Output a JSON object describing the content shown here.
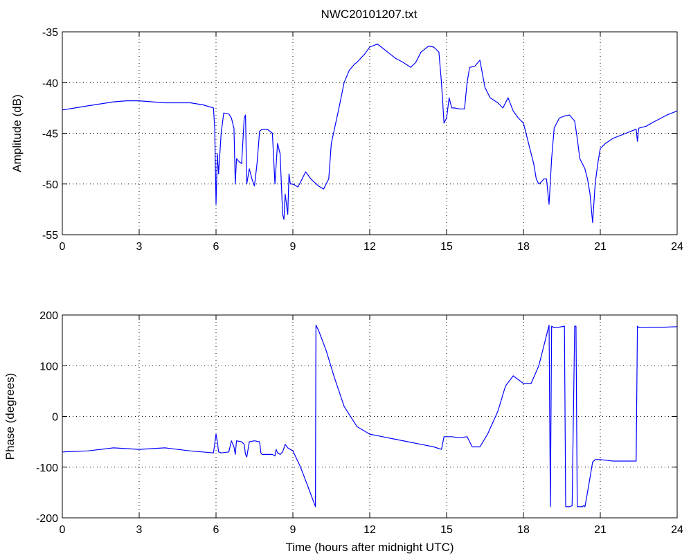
{
  "figure": {
    "title": "NWC20101207.txt",
    "line_color": "#0000ff",
    "background": "#ffffff"
  },
  "chart_data": [
    {
      "type": "line",
      "title": "NWC20101207.txt",
      "xlabel": "",
      "ylabel": "Amplitude (dB)",
      "xlim": [
        0,
        24
      ],
      "ylim": [
        -55,
        -35
      ],
      "xticks": [
        0,
        3,
        6,
        9,
        12,
        15,
        18,
        21,
        24
      ],
      "yticks": [
        -55,
        -50,
        -45,
        -40,
        -35
      ],
      "grid": true,
      "series": [
        {
          "color": "#0000ff",
          "x": [
            0,
            0.5,
            1,
            1.5,
            2,
            2.5,
            3,
            3.5,
            4,
            4.5,
            5,
            5.5,
            5.9,
            5.95,
            6.0,
            6.05,
            6.1,
            6.2,
            6.3,
            6.5,
            6.6,
            6.7,
            6.75,
            6.8,
            6.9,
            7.0,
            7.1,
            7.15,
            7.2,
            7.3,
            7.4,
            7.5,
            7.6,
            7.7,
            7.8,
            8.0,
            8.2,
            8.3,
            8.4,
            8.5,
            8.55,
            8.6,
            8.65,
            8.7,
            8.8,
            8.85,
            8.9,
            9.0,
            9.2,
            9.5,
            9.7,
            10.0,
            10.2,
            10.4,
            10.5,
            10.8,
            11.0,
            11.2,
            11.4,
            11.5,
            11.8,
            12.0,
            12.3,
            12.5,
            12.8,
            13.0,
            13.3,
            13.6,
            13.8,
            14.0,
            14.3,
            14.5,
            14.7,
            14.8,
            14.9,
            15.0,
            15.1,
            15.2,
            15.3,
            15.5,
            15.7,
            15.8,
            15.9,
            16.1,
            16.3,
            16.5,
            16.7,
            17.0,
            17.2,
            17.4,
            17.6,
            17.8,
            18.0,
            18.2,
            18.4,
            18.5,
            18.6,
            18.7,
            18.8,
            18.9,
            19.0,
            19.1,
            19.2,
            19.4,
            19.6,
            19.8,
            20.0,
            20.1,
            20.2,
            20.3,
            20.4,
            20.5,
            20.6,
            20.7,
            20.8,
            20.9,
            21.0,
            21.2,
            21.5,
            21.8,
            22.0,
            22.2,
            22.4,
            22.45,
            22.5,
            22.8,
            23.0,
            23.3,
            23.6,
            24.0
          ],
          "y": [
            -42.7,
            -42.5,
            -42.3,
            -42.1,
            -41.9,
            -41.8,
            -41.8,
            -41.9,
            -42.0,
            -42.0,
            -42.0,
            -42.2,
            -42.5,
            -44.5,
            -52.0,
            -47.0,
            -49.0,
            -45.0,
            -43.0,
            -43.1,
            -43.5,
            -44.5,
            -50.0,
            -47.5,
            -47.8,
            -48.0,
            -43.5,
            -43.2,
            -50.0,
            -48.5,
            -49.5,
            -50.2,
            -48.0,
            -44.8,
            -44.6,
            -44.6,
            -45.0,
            -50.0,
            -46.0,
            -47.0,
            -50.0,
            -53.0,
            -53.5,
            -51.0,
            -53.0,
            -49.0,
            -50.0,
            -50.0,
            -50.3,
            -48.8,
            -49.5,
            -50.2,
            -50.5,
            -49.5,
            -46.0,
            -42.5,
            -40.0,
            -38.8,
            -38.2,
            -38.0,
            -37.2,
            -36.5,
            -36.2,
            -36.6,
            -37.2,
            -37.6,
            -38.0,
            -38.5,
            -38.0,
            -37.0,
            -36.4,
            -36.5,
            -37.0,
            -40.0,
            -44.0,
            -43.5,
            -41.5,
            -42.5,
            -42.5,
            -42.6,
            -42.6,
            -40.0,
            -38.5,
            -38.4,
            -37.8,
            -40.5,
            -41.5,
            -42.0,
            -42.5,
            -41.5,
            -42.8,
            -43.5,
            -44.0,
            -46.0,
            -48.0,
            -49.5,
            -50.0,
            -49.8,
            -49.5,
            -49.5,
            -52.0,
            -47.5,
            -44.5,
            -43.5,
            -43.3,
            -43.2,
            -43.8,
            -45.5,
            -47.5,
            -48.0,
            -48.5,
            -49.5,
            -51.0,
            -53.8,
            -50.0,
            -48.0,
            -46.5,
            -46.0,
            -45.5,
            -45.2,
            -45.0,
            -44.8,
            -44.6,
            -45.8,
            -44.5,
            -44.3,
            -44.0,
            -43.6,
            -43.2,
            -42.8
          ]
        }
      ]
    },
    {
      "type": "line",
      "title": "",
      "xlabel": "Time (hours after midnight UTC)",
      "ylabel": "Phase (degrees)",
      "xlim": [
        0,
        24
      ],
      "ylim": [
        -200,
        200
      ],
      "xticks": [
        0,
        3,
        6,
        9,
        12,
        15,
        18,
        21,
        24
      ],
      "yticks": [
        -200,
        -100,
        0,
        100,
        200
      ],
      "grid": true,
      "series": [
        {
          "color": "#0000ff",
          "x": [
            0,
            1,
            2,
            3,
            4,
            5,
            5.9,
            6.0,
            6.05,
            6.1,
            6.2,
            6.5,
            6.6,
            6.7,
            6.75,
            6.8,
            7.0,
            7.1,
            7.15,
            7.2,
            7.3,
            7.5,
            7.7,
            7.75,
            7.8,
            8.0,
            8.2,
            8.3,
            8.35,
            8.4,
            8.5,
            8.6,
            8.7,
            8.8,
            9.0,
            9.3,
            9.6,
            9.88,
            9.9,
            10.0,
            10.3,
            10.6,
            11.0,
            11.5,
            12.0,
            12.5,
            13.0,
            13.5,
            14.0,
            14.5,
            14.8,
            14.9,
            15.2,
            15.5,
            15.8,
            16.0,
            16.3,
            16.6,
            17.0,
            17.3,
            17.6,
            18.0,
            18.3,
            18.6,
            18.8,
            19.0,
            19.05,
            19.1,
            19.2,
            19.4,
            19.6,
            19.65,
            19.7,
            19.8,
            19.9,
            20.0,
            20.05,
            20.1,
            20.3,
            20.35,
            20.4,
            20.5,
            20.6,
            20.7,
            20.8,
            21.0,
            21.5,
            22.0,
            22.4,
            22.45,
            22.5,
            22.8,
            23.0,
            23.5,
            24.0
          ],
          "y": [
            -70,
            -68,
            -62,
            -65,
            -62,
            -68,
            -72,
            -35,
            -50,
            -70,
            -72,
            -70,
            -48,
            -60,
            -75,
            -48,
            -50,
            -55,
            -75,
            -80,
            -50,
            -48,
            -50,
            -72,
            -75,
            -75,
            -75,
            -78,
            -65,
            -72,
            -75,
            -70,
            -55,
            -62,
            -68,
            -100,
            -140,
            -178,
            180,
            170,
            130,
            80,
            20,
            -20,
            -35,
            -40,
            -45,
            -50,
            -55,
            -60,
            -65,
            -40,
            -40,
            -42,
            -40,
            -60,
            -60,
            -35,
            10,
            60,
            80,
            65,
            65,
            100,
            140,
            180,
            -178,
            178,
            175,
            176,
            178,
            -178,
            -178,
            -178,
            -176,
            178,
            178,
            -178,
            -178,
            -176,
            -178,
            -150,
            -120,
            -90,
            -85,
            -85,
            -88,
            -88,
            -88,
            178,
            175,
            175,
            176,
            176,
            177
          ]
        }
      ]
    }
  ]
}
